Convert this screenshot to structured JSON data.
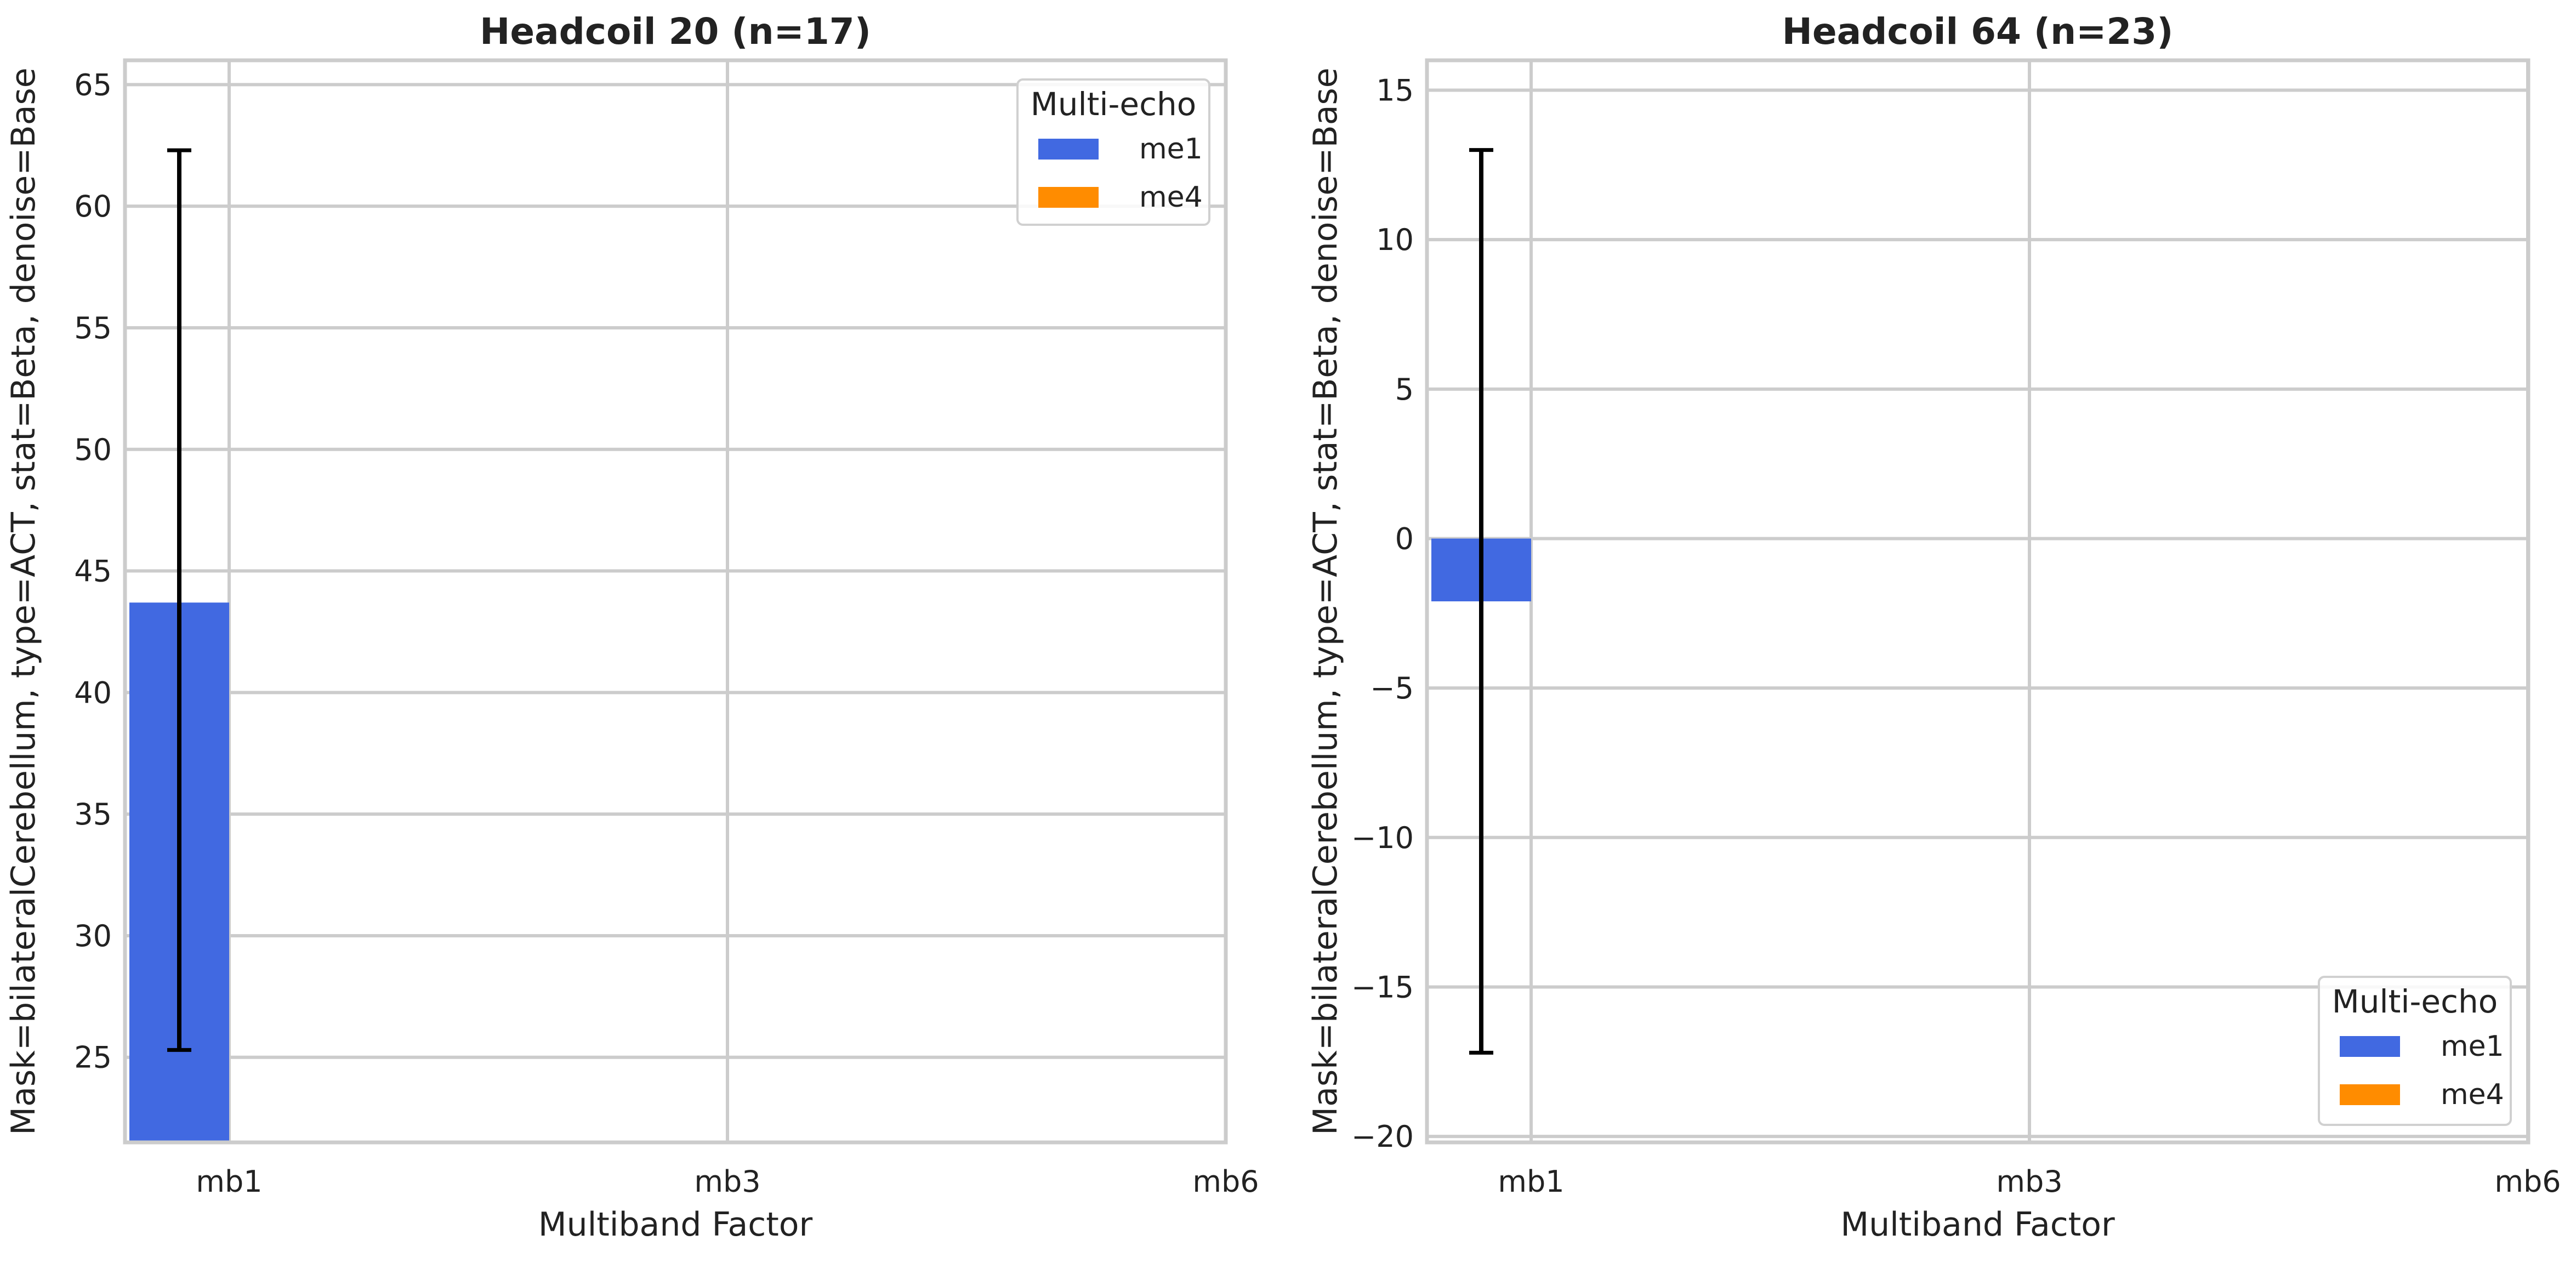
{
  "colors": {
    "me1": "#4169e1",
    "me4": "#ff8c00",
    "grid": "#cccccc",
    "frame": "#cccccc",
    "errorbar": "#000000"
  },
  "chart_data": [
    {
      "type": "bar",
      "title": "Headcoil 20 (n=17)",
      "xlabel": "Multiband Factor",
      "ylabel": "Mask=bilateralCerebellum, type=ACT, stat=Beta, denoise=Base",
      "categories": [
        "mb1",
        "mb3",
        "mb6"
      ],
      "ylim": [
        21.5,
        66
      ],
      "yticks": [
        25,
        30,
        35,
        40,
        45,
        50,
        55,
        60,
        65
      ],
      "ytick_labels": [
        "25",
        "30",
        "35",
        "40",
        "45",
        "50",
        "55",
        "60",
        "65"
      ],
      "grid": true,
      "legend": {
        "title": "Multi-echo",
        "position": "top-right",
        "entries": [
          "me1",
          "me4"
        ]
      },
      "series": [
        {
          "name": "me1",
          "values": [
            43.7,
            null,
            null
          ],
          "err_low": [
            25.3,
            null,
            null
          ],
          "err_high": [
            62.3,
            null,
            null
          ]
        },
        {
          "name": "me4",
          "values": [
            null,
            null,
            null
          ],
          "err_low": [
            null,
            null,
            null
          ],
          "err_high": [
            null,
            null,
            null
          ]
        }
      ]
    },
    {
      "type": "bar",
      "title": "Headcoil 64 (n=23)",
      "xlabel": "Multiband Factor",
      "ylabel": "Mask=bilateralCerebellum, type=ACT, stat=Beta, denoise=Base",
      "categories": [
        "mb1",
        "mb3",
        "mb6"
      ],
      "ylim": [
        -20.2,
        16
      ],
      "yticks": [
        -20,
        -15,
        -10,
        -5,
        0,
        5,
        10,
        15
      ],
      "ytick_labels": [
        "−20",
        "−15",
        "−10",
        "−5",
        "0",
        "5",
        "10",
        "15"
      ],
      "grid": true,
      "legend": {
        "title": "Multi-echo",
        "position": "bottom-right",
        "entries": [
          "me1",
          "me4"
        ]
      },
      "series": [
        {
          "name": "me1",
          "values": [
            -2.1,
            null,
            null
          ],
          "err_low": [
            -17.2,
            null,
            null
          ],
          "err_high": [
            13.0,
            null,
            null
          ]
        },
        {
          "name": "me4",
          "values": [
            null,
            null,
            null
          ],
          "err_low": [
            null,
            null,
            null
          ],
          "err_high": [
            null,
            null,
            null
          ]
        }
      ]
    }
  ]
}
